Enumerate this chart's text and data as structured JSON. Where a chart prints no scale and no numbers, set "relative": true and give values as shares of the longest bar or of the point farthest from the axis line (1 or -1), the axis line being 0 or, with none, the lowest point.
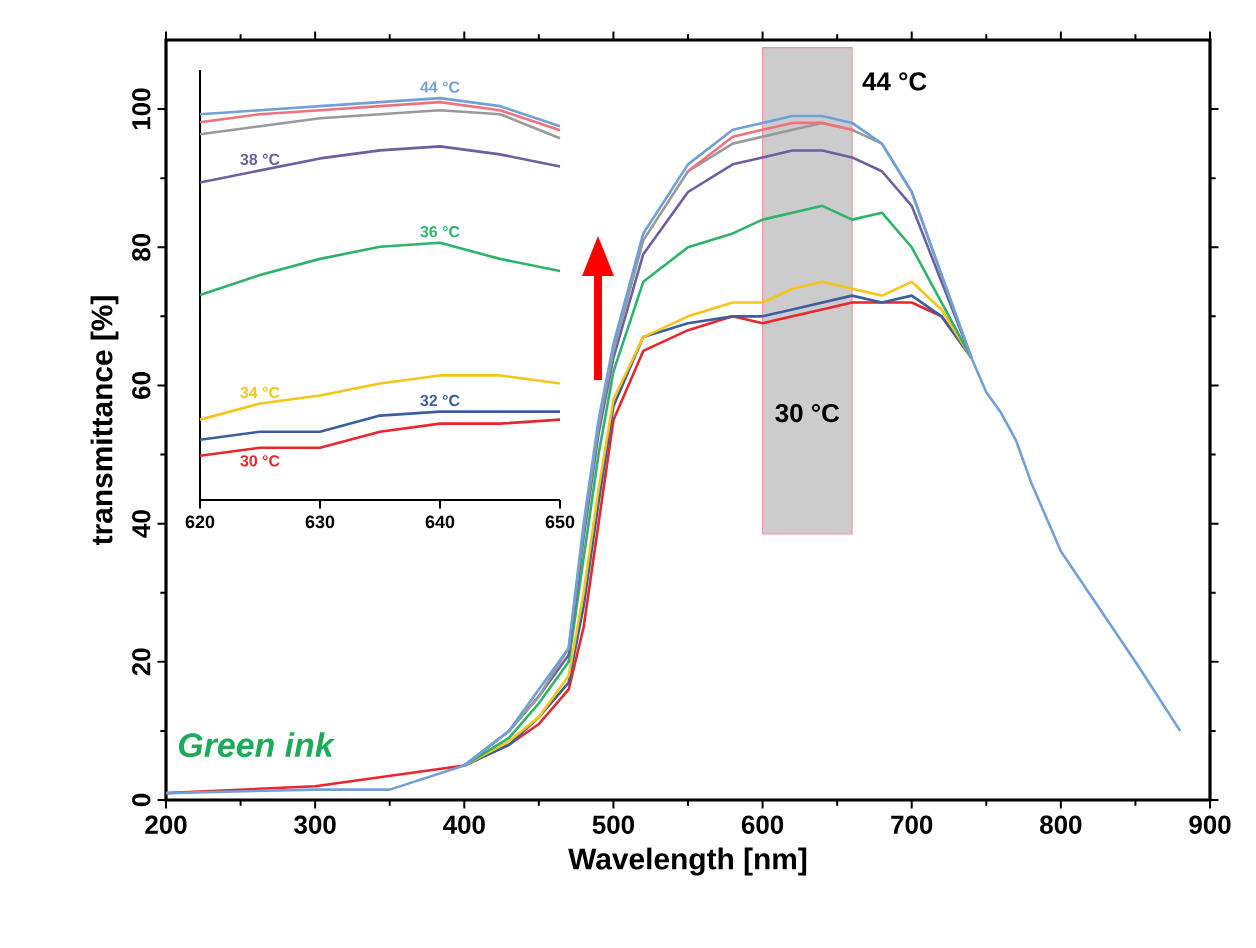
{
  "chart_data": [
    {
      "type": "line",
      "xlabel": "Wavelength [nm]",
      "ylabel": "transmittance [%]",
      "x": [
        200,
        300,
        350,
        400,
        430,
        450,
        470,
        480,
        490,
        500,
        520,
        550,
        580,
        600,
        620,
        640,
        660,
        680,
        700,
        720,
        740,
        750,
        760,
        770,
        780,
        800,
        850,
        880
      ],
      "xlim": [
        200,
        900
      ],
      "ylim": [
        0,
        110
      ],
      "xticks": [
        200,
        300,
        400,
        500,
        600,
        700,
        800,
        900
      ],
      "yticks": [
        0,
        20,
        40,
        60,
        80,
        100
      ],
      "line_style": "solid",
      "marker": "none",
      "series": [
        {
          "color": "#e8262b",
          "values": [
            1,
            2,
            null,
            5,
            8,
            11,
            16,
            25,
            40,
            55,
            65,
            68,
            70,
            69,
            70,
            71,
            72,
            72,
            72,
            70,
            64,
            null,
            null,
            null,
            null,
            null,
            null,
            null
          ]
        },
        {
          "color": "#3a5fa0",
          "values": [
            null,
            null,
            null,
            5,
            8,
            12,
            17,
            28,
            43,
            57,
            67,
            69,
            70,
            70,
            71,
            72,
            73,
            72,
            73,
            70,
            64,
            null,
            null,
            null,
            null,
            null,
            null,
            null
          ]
        },
        {
          "color": "#f5c518",
          "values": [
            null,
            null,
            null,
            5,
            8.5,
            12,
            18,
            30,
            45,
            58,
            67,
            70,
            72,
            72,
            74,
            75,
            74,
            73,
            75,
            71,
            64,
            null,
            null,
            null,
            null,
            null,
            null,
            null
          ]
        },
        {
          "color": "#2db36a",
          "values": [
            null,
            null,
            null,
            5,
            9,
            14,
            20,
            35,
            50,
            62,
            75,
            80,
            82,
            84,
            85,
            86,
            84,
            85,
            80,
            72,
            64,
            null,
            null,
            null,
            null,
            null,
            null,
            null
          ]
        },
        {
          "color": "#6a5fa0",
          "values": [
            null,
            null,
            null,
            5,
            10,
            15,
            21,
            38,
            53,
            64,
            79,
            88,
            92,
            93,
            94,
            94,
            93,
            91,
            86,
            75,
            64,
            null,
            null,
            null,
            null,
            null,
            null,
            null
          ]
        },
        {
          "color": "#999999",
          "values": [
            null,
            null,
            null,
            5,
            10,
            15,
            22,
            39,
            54,
            65,
            81,
            91,
            95,
            96,
            97,
            98,
            97,
            95,
            88,
            76,
            64,
            null,
            null,
            null,
            null,
            null,
            null,
            null
          ]
        },
        {
          "color": "#f07080",
          "values": [
            null,
            null,
            null,
            null,
            null,
            null,
            null,
            null,
            null,
            null,
            null,
            91,
            96,
            97,
            98,
            98,
            97,
            null,
            null,
            null,
            null,
            null,
            null,
            null,
            null,
            null,
            null,
            null
          ]
        },
        {
          "color": "#6fa0d8",
          "values": [
            1,
            1.5,
            1.5,
            5,
            10,
            16,
            22,
            40,
            55,
            66,
            82,
            92,
            97,
            98,
            99,
            99,
            98,
            95,
            88,
            76,
            64,
            59,
            56,
            52,
            46,
            36,
            20,
            10
          ]
        }
      ],
      "bands": [
        {
          "axis": "x",
          "from": 600,
          "to": 660,
          "color": "#cccccc"
        }
      ],
      "annotations": [
        "44 °C",
        "30 °C",
        "Green ink"
      ]
    },
    {
      "type": "line",
      "x": [
        620,
        625,
        630,
        635,
        640,
        645,
        650
      ],
      "xlim": [
        620,
        650
      ],
      "xticks": [
        620,
        630,
        640,
        650
      ],
      "relative": true,
      "tick_labels": "x",
      "line_style": "solid",
      "marker": "none",
      "series": [
        {
          "name": "30 °C",
          "color": "#e8262b",
          "values": [
            0.11,
            0.13,
            0.13,
            0.17,
            0.19,
            0.19,
            0.2
          ]
        },
        {
          "name": "32 °C",
          "color": "#3a5fa0",
          "values": [
            0.15,
            0.17,
            0.17,
            0.21,
            0.22,
            0.22,
            0.22
          ]
        },
        {
          "name": "34 °C",
          "color": "#f5c518",
          "values": [
            0.2,
            0.24,
            0.26,
            0.29,
            0.31,
            0.31,
            0.29
          ]
        },
        {
          "name": "36 °C",
          "color": "#2db36a",
          "values": [
            0.51,
            0.56,
            0.6,
            0.63,
            0.64,
            0.6,
            0.57
          ]
        },
        {
          "name": "38 °C",
          "color": "#6a5fa0",
          "values": [
            0.79,
            0.82,
            0.85,
            0.87,
            0.88,
            0.86,
            0.83
          ]
        },
        {
          "color": "#999999",
          "values": [
            0.91,
            0.93,
            0.95,
            0.96,
            0.97,
            0.96,
            0.9
          ]
        },
        {
          "color": "#f07080",
          "values": [
            0.94,
            0.96,
            0.97,
            0.98,
            0.99,
            0.97,
            0.92
          ]
        },
        {
          "name": "44 °C",
          "color": "#6fa0d8",
          "values": [
            0.96,
            0.97,
            0.98,
            0.99,
            1,
            0.98,
            0.93
          ]
        }
      ]
    }
  ]
}
